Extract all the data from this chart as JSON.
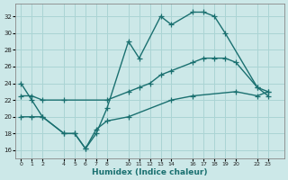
{
  "bg_color": "#cce8e8",
  "grid_color": "#aad4d4",
  "line_color": "#1a7070",
  "line_width": 1.0,
  "marker": "+",
  "marker_size": 4,
  "marker_lw": 0.9,
  "xlabel": "Humidex (Indice chaleur)",
  "xlabel_fontsize": 6.5,
  "xlabel_color": "#1a7070",
  "ylim": [
    15.0,
    33.5
  ],
  "yticks": [
    16,
    18,
    20,
    22,
    24,
    26,
    28,
    30,
    32
  ],
  "xticks": [
    0,
    1,
    2,
    4,
    5,
    6,
    7,
    8,
    10,
    11,
    12,
    13,
    14,
    16,
    17,
    18,
    19,
    20,
    22,
    23
  ],
  "xlim": [
    -0.5,
    24.5
  ],
  "series": [
    {
      "x": [
        0,
        1,
        2,
        4,
        5,
        6,
        7,
        8,
        10,
        11,
        13,
        14,
        16,
        17,
        18,
        19,
        22,
        23
      ],
      "y": [
        24,
        22,
        20,
        18,
        18,
        16.2,
        18,
        21,
        29,
        27,
        32,
        31,
        32.5,
        32.5,
        32,
        30,
        23.5,
        23
      ]
    },
    {
      "x": [
        0,
        1,
        2,
        4,
        8,
        10,
        11,
        12,
        13,
        14,
        16,
        17,
        18,
        19,
        20,
        22,
        23
      ],
      "y": [
        22.5,
        22.5,
        22,
        22,
        22,
        23,
        23.5,
        24,
        25,
        25.5,
        26.5,
        27,
        27,
        27,
        26.5,
        23.5,
        22.5
      ]
    },
    {
      "x": [
        0,
        1,
        2,
        4,
        5,
        6,
        7,
        8,
        10,
        14,
        16,
        20,
        22,
        23
      ],
      "y": [
        20,
        20,
        20,
        18,
        18,
        16.2,
        18.5,
        19.5,
        20,
        22,
        22.5,
        23,
        22.5,
        23
      ]
    }
  ]
}
